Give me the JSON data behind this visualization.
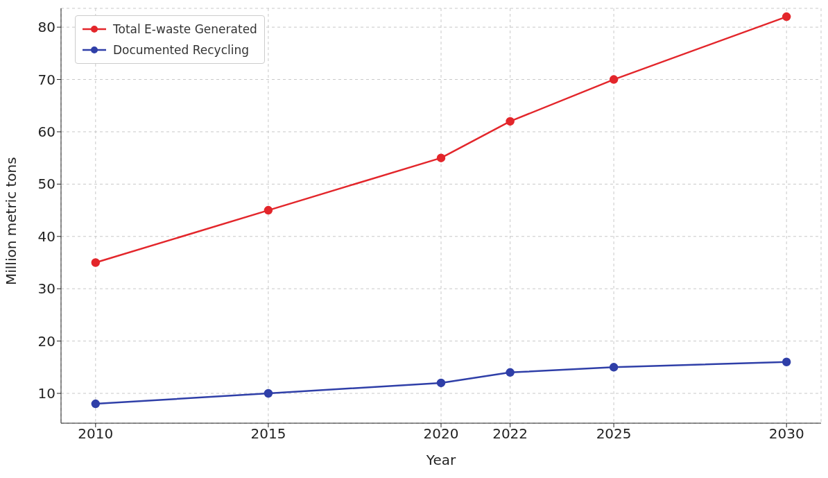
{
  "chart_data": {
    "type": "line",
    "xlabel": "Year",
    "ylabel": "Million metric tons",
    "x": [
      2010,
      2015,
      2020,
      2022,
      2025,
      2030
    ],
    "series": [
      {
        "name": "Total E-waste Generated",
        "color": "#e3262b",
        "values": [
          35,
          45,
          55,
          62,
          70,
          82
        ]
      },
      {
        "name": "Documented Recycling",
        "color": "#2f3fa8",
        "values": [
          8,
          10,
          12,
          14,
          15,
          16
        ]
      }
    ],
    "xlim": [
      2009,
      2031
    ],
    "xticks": [
      2010,
      2015,
      2020,
      2022,
      2025,
      2030
    ],
    "ylim": [
      4.3,
      83.6
    ],
    "yticks": [
      10,
      20,
      30,
      40,
      50,
      60,
      70,
      80
    ],
    "grid": true,
    "legend": "top left",
    "marker": "circle",
    "line_style": "solid"
  }
}
